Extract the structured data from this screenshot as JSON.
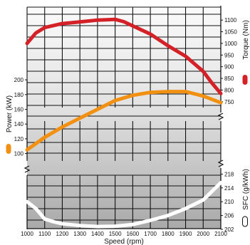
{
  "chart_data": {
    "type": "line",
    "xlabel": "Speed (rpm)",
    "x_ticks": [
      1000,
      1100,
      1200,
      1300,
      1400,
      1500,
      1600,
      1700,
      1800,
      1900,
      2000,
      2100
    ],
    "xlim": [
      1000,
      2100
    ],
    "grid": true,
    "panels": [
      {
        "key": "torque",
        "label": "Torque (Nm)",
        "axis_side": "right",
        "color": "#d42027",
        "ylim": [
          725,
          1125
        ],
        "ticks": [
          750,
          800,
          850,
          900,
          950,
          1000,
          1050,
          1100
        ],
        "series": {
          "x": [
            1000,
            1050,
            1100,
            1200,
            1300,
            1400,
            1500,
            1550,
            1600,
            1700,
            1800,
            1900,
            2000,
            2050,
            2100
          ],
          "y": [
            1000,
            1045,
            1068,
            1085,
            1092,
            1100,
            1103,
            1093,
            1075,
            1040,
            990,
            945,
            880,
            830,
            785
          ]
        }
      },
      {
        "key": "power",
        "label": "Power (kW)",
        "axis_side": "left",
        "color": "#f29111",
        "ylim": [
          88,
          202
        ],
        "ticks": [
          100,
          120,
          140,
          160,
          180,
          200
        ],
        "series": {
          "x": [
            1000,
            1100,
            1200,
            1300,
            1400,
            1500,
            1600,
            1700,
            1800,
            1900,
            2000,
            2100
          ],
          "y": [
            105,
            122,
            136,
            148,
            160,
            172,
            179,
            183,
            184,
            184,
            178,
            169
          ]
        }
      },
      {
        "key": "sfc",
        "label": "SFC (g/kWh)",
        "axis_side": "right",
        "color": "#ffffff",
        "ylim": [
          202,
          218.5
        ],
        "ticks": [
          202,
          206,
          210,
          214,
          218
        ],
        "series": {
          "x": [
            1000,
            1050,
            1100,
            1150,
            1200,
            1300,
            1400,
            1500,
            1600,
            1700,
            1800,
            1900,
            2000,
            2100
          ],
          "y": [
            210,
            208,
            205,
            204.2,
            203.6,
            203.1,
            202.8,
            202.9,
            203.4,
            204.6,
            206,
            208,
            210.5,
            215.5
          ]
        }
      }
    ]
  }
}
